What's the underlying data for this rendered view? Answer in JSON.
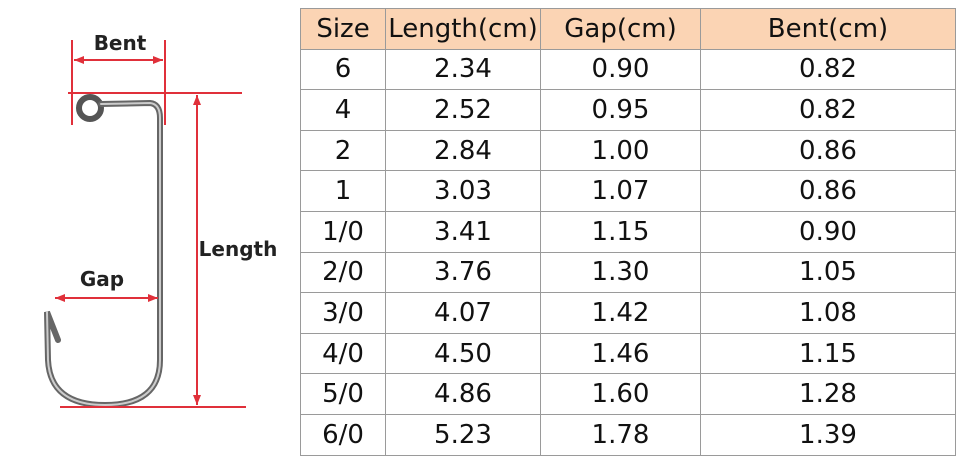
{
  "diagram": {
    "labels": {
      "bent": "Bent",
      "length": "Length",
      "gap": "Gap"
    }
  },
  "table": {
    "header": [
      "Size",
      "Length(cm)",
      "Gap(cm)",
      "Bent(cm)"
    ],
    "rows": [
      [
        "6",
        "2.34",
        "0.90",
        "0.82"
      ],
      [
        "4",
        "2.52",
        "0.95",
        "0.82"
      ],
      [
        "2",
        "2.84",
        "1.00",
        "0.86"
      ],
      [
        "1",
        "3.03",
        "1.07",
        "0.86"
      ],
      [
        "1/0",
        "3.41",
        "1.15",
        "0.90"
      ],
      [
        "2/0",
        "3.76",
        "1.30",
        "1.05"
      ],
      [
        "3/0",
        "4.07",
        "1.42",
        "1.08"
      ],
      [
        "4/0",
        "4.50",
        "1.46",
        "1.15"
      ],
      [
        "5/0",
        "4.86",
        "1.60",
        "1.28"
      ],
      [
        "6/0",
        "5.23",
        "1.78",
        "1.39"
      ]
    ]
  }
}
